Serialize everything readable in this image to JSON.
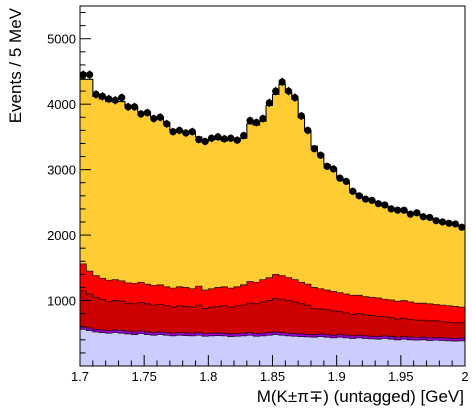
{
  "chart_data": {
    "type": "area",
    "title": "",
    "xlabel": "M(K±π∓) (untagged) [GeV]",
    "ylabel": "Events / 5 MeV",
    "xlim": [
      1.7,
      2.0
    ],
    "ylim": [
      0,
      5500
    ],
    "xticks": [
      1.7,
      1.75,
      1.8,
      1.85,
      1.9,
      1.95,
      2.0
    ],
    "xtick_labels": [
      "1.7",
      "1.75",
      "1.8",
      "1.85",
      "1.9",
      "1.95",
      "2"
    ],
    "yticks": [
      1000,
      2000,
      3000,
      4000,
      5000
    ],
    "ytick_labels": [
      "1000",
      "2000",
      "3000",
      "4000",
      "5000"
    ],
    "bin_width": 0.005,
    "legend": "none",
    "grid": false,
    "data_points": {
      "x": [
        1.7025,
        1.7075,
        1.7125,
        1.7175,
        1.7225,
        1.7275,
        1.7325,
        1.7375,
        1.7425,
        1.7475,
        1.7525,
        1.7575,
        1.7625,
        1.7675,
        1.7725,
        1.7775,
        1.7825,
        1.7875,
        1.7925,
        1.7975,
        1.8025,
        1.8075,
        1.8125,
        1.8175,
        1.8225,
        1.8275,
        1.8325,
        1.8375,
        1.8425,
        1.8475,
        1.8525,
        1.8575,
        1.8625,
        1.8675,
        1.8725,
        1.8775,
        1.8825,
        1.8875,
        1.8925,
        1.8975,
        1.9025,
        1.9075,
        1.9125,
        1.9175,
        1.9225,
        1.9275,
        1.9325,
        1.9375,
        1.9425,
        1.9475,
        1.9525,
        1.9575,
        1.9625,
        1.9675,
        1.9725,
        1.9775,
        1.9825,
        1.9875,
        1.9925,
        1.9975
      ],
      "y": [
        4450,
        4450,
        4150,
        4120,
        4080,
        4060,
        4100,
        3960,
        3960,
        3850,
        3870,
        3780,
        3800,
        3700,
        3580,
        3600,
        3560,
        3580,
        3460,
        3430,
        3480,
        3500,
        3470,
        3480,
        3450,
        3520,
        3750,
        3720,
        3780,
        4020,
        4200,
        4340,
        4200,
        4100,
        3820,
        3600,
        3320,
        3220,
        3050,
        3010,
        2870,
        2820,
        2670,
        2600,
        2550,
        2530,
        2480,
        2460,
        2400,
        2380,
        2380,
        2320,
        2340,
        2280,
        2270,
        2220,
        2200,
        2180,
        2170,
        2120
      ]
    },
    "series": [
      {
        "name": "",
        "color": "#ccccff",
        "values": [
          560,
          540,
          520,
          510,
          500,
          510,
          500,
          490,
          480,
          495,
          480,
          470,
          480,
          470,
          460,
          470,
          465,
          460,
          470,
          455,
          460,
          465,
          460,
          450,
          455,
          460,
          470,
          455,
          460,
          470,
          480,
          470,
          460,
          455,
          450,
          445,
          440,
          450,
          440,
          430,
          440,
          430,
          420,
          430,
          420,
          415,
          410,
          420,
          410,
          400,
          410,
          400,
          395,
          400,
          390,
          395,
          390,
          385,
          380,
          385
        ]
      },
      {
        "name": "",
        "color": "#9900cc",
        "values": [
          600,
          580,
          560,
          550,
          540,
          550,
          545,
          530,
          520,
          535,
          520,
          510,
          520,
          510,
          500,
          510,
          505,
          500,
          510,
          495,
          500,
          505,
          500,
          490,
          495,
          500,
          510,
          495,
          500,
          510,
          520,
          510,
          500,
          495,
          490,
          485,
          480,
          490,
          480,
          470,
          480,
          470,
          460,
          470,
          460,
          455,
          450,
          460,
          450,
          440,
          450,
          440,
          435,
          440,
          430,
          435,
          430,
          425,
          420,
          425
        ]
      },
      {
        "name": "",
        "color": "#cc0000",
        "values": [
          1150,
          1100,
          1050,
          1020,
          980,
          1000,
          990,
          960,
          950,
          970,
          950,
          930,
          940,
          920,
          900,
          920,
          910,
          900,
          930,
          880,
          900,
          910,
          920,
          900,
          920,
          930,
          960,
          950,
          980,
          1000,
          1030,
          1020,
          1000,
          980,
          950,
          930,
          880,
          870,
          860,
          840,
          830,
          810,
          790,
          800,
          780,
          770,
          760,
          750,
          740,
          720,
          730,
          710,
          700,
          700,
          690,
          690,
          680,
          670,
          660,
          660
        ]
      },
      {
        "name": "",
        "color": "#ff0000",
        "values": [
          1560,
          1450,
          1380,
          1340,
          1310,
          1320,
          1300,
          1270,
          1260,
          1280,
          1250,
          1230,
          1240,
          1210,
          1190,
          1210,
          1200,
          1180,
          1220,
          1160,
          1180,
          1200,
          1210,
          1190,
          1210,
          1240,
          1290,
          1280,
          1320,
          1350,
          1400,
          1380,
          1350,
          1320,
          1280,
          1250,
          1200,
          1180,
          1160,
          1140,
          1120,
          1100,
          1080,
          1080,
          1060,
          1050,
          1040,
          1020,
          1010,
          990,
          1000,
          980,
          960,
          960,
          950,
          940,
          930,
          920,
          910,
          900
        ]
      },
      {
        "name": "",
        "color": "#ffcc33",
        "values": [
          4380,
          4380,
          4120,
          4080,
          4040,
          4040,
          4040,
          3960,
          3960,
          3880,
          3880,
          3800,
          3800,
          3720,
          3600,
          3600,
          3580,
          3580,
          3500,
          3440,
          3460,
          3460,
          3440,
          3460,
          3440,
          3480,
          3700,
          3680,
          3740,
          3980,
          4150,
          4300,
          4180,
          4080,
          3800,
          3600,
          3360,
          3240,
          3080,
          3020,
          2880,
          2820,
          2680,
          2620,
          2560,
          2530,
          2490,
          2460,
          2410,
          2390,
          2380,
          2330,
          2340,
          2290,
          2270,
          2230,
          2210,
          2190,
          2170,
          2140
        ]
      }
    ],
    "total_model": [
      4380,
      4380,
      4120,
      4080,
      4040,
      4040,
      4040,
      3960,
      3960,
      3880,
      3880,
      3800,
      3800,
      3720,
      3600,
      3600,
      3580,
      3580,
      3500,
      3440,
      3460,
      3460,
      3440,
      3460,
      3440,
      3480,
      3700,
      3680,
      3740,
      3980,
      4150,
      4300,
      4180,
      4080,
      3800,
      3600,
      3360,
      3240,
      3080,
      3020,
      2880,
      2820,
      2680,
      2620,
      2560,
      2530,
      2490,
      2460,
      2410,
      2390,
      2380,
      2330,
      2340,
      2290,
      2270,
      2230,
      2210,
      2190,
      2170,
      2140
    ]
  }
}
